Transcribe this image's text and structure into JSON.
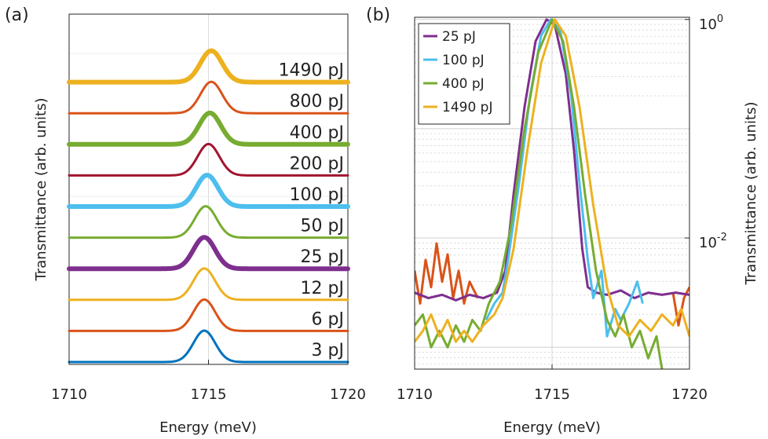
{
  "chart_data": [
    {
      "type": "line",
      "panel_label": "(a)",
      "xlabel": "Energy (meV)",
      "ylabel": "Transmittance (arb. units)",
      "xlim": [
        1710,
        1720
      ],
      "xticks": [
        "1710",
        "1715",
        "1720"
      ],
      "y_scale": "offset waterfall",
      "grid": true,
      "peak_width_meV": 0.55,
      "series": [
        {
          "name": "3 pJ",
          "label": "3 pJ",
          "color": "#0072BD",
          "center": 1714.85,
          "thick": false
        },
        {
          "name": "6 pJ",
          "label": "6 pJ",
          "color": "#D95319",
          "center": 1714.85,
          "thick": false
        },
        {
          "name": "12 pJ",
          "label": "12 pJ",
          "color": "#EDB120",
          "center": 1714.85,
          "thick": false
        },
        {
          "name": "25 pJ",
          "label": "25 pJ",
          "color": "#7E2F8E",
          "center": 1714.85,
          "thick": true
        },
        {
          "name": "50 pJ",
          "label": "50 pJ",
          "color": "#77AC30",
          "center": 1714.9,
          "thick": false
        },
        {
          "name": "100 pJ",
          "label": "100 pJ",
          "color": "#4DBEEE",
          "center": 1714.95,
          "thick": true
        },
        {
          "name": "200 pJ",
          "label": "200 pJ",
          "color": "#A2142F",
          "center": 1715.0,
          "thick": false
        },
        {
          "name": "400 pJ",
          "label": "400 pJ",
          "color": "#77AC30",
          "center": 1715.05,
          "thick": true
        },
        {
          "name": "800 pJ",
          "label": "800 pJ",
          "color": "#D95319",
          "center": 1715.1,
          "thick": false
        },
        {
          "name": "1490 pJ",
          "label": "1490 pJ",
          "color": "#EDB120",
          "center": 1715.1,
          "thick": true
        }
      ]
    },
    {
      "type": "line",
      "panel_label": "(b)",
      "xlabel": "Energy (meV)",
      "ylabel": "Transmittance (arb. units)",
      "xlim": [
        1710,
        1720
      ],
      "xticks": [
        "1710",
        "1715",
        "1720"
      ],
      "y_scale": "log",
      "ylim_log10": [
        -3.2,
        0.02
      ],
      "yticks": [
        {
          "base": "10",
          "exp": "0",
          "log10": 0
        },
        {
          "base": "10",
          "exp": "-2",
          "log10": -2
        }
      ],
      "legend_position": "top-left",
      "grid": true,
      "series": [
        {
          "name": "25 pJ",
          "color": "#7E2F8E",
          "points": [
            [
              1710,
              -2.5
            ],
            [
              1710.5,
              -2.55
            ],
            [
              1711,
              -2.52
            ],
            [
              1711.5,
              -2.57
            ],
            [
              1712,
              -2.52
            ],
            [
              1712.5,
              -2.55
            ],
            [
              1713,
              -2.5
            ],
            [
              1713.3,
              -2.3
            ],
            [
              1713.6,
              -1.6
            ],
            [
              1714,
              -0.8
            ],
            [
              1714.4,
              -0.2
            ],
            [
              1714.8,
              0
            ],
            [
              1715.1,
              -0.05
            ],
            [
              1715.5,
              -0.5
            ],
            [
              1715.8,
              -1.2
            ],
            [
              1716.1,
              -2.1
            ],
            [
              1716.3,
              -2.45
            ],
            [
              1716.6,
              -2.5
            ],
            [
              1717,
              -2.52
            ],
            [
              1717.5,
              -2.48
            ],
            [
              1718,
              -2.55
            ],
            [
              1718.5,
              -2.5
            ],
            [
              1719,
              -2.52
            ],
            [
              1719.5,
              -2.5
            ],
            [
              1720,
              -2.52
            ]
          ]
        },
        {
          "name": "100 pJ",
          "color": "#4DBEEE",
          "points": [
            [
              1712.6,
              -2.75
            ],
            [
              1712.9,
              -2.6
            ],
            [
              1713.2,
              -2.5
            ],
            [
              1713.4,
              -2.2
            ],
            [
              1713.8,
              -1.5
            ],
            [
              1714.2,
              -0.7
            ],
            [
              1714.6,
              -0.15
            ],
            [
              1714.95,
              0
            ],
            [
              1715.3,
              -0.1
            ],
            [
              1715.7,
              -0.7
            ],
            [
              1716.0,
              -1.5
            ],
            [
              1716.3,
              -2.2
            ],
            [
              1716.5,
              -2.55
            ],
            [
              1716.8,
              -2.3
            ],
            [
              1717.0,
              -2.9
            ],
            [
              1717.3,
              -2.65
            ],
            [
              1717.5,
              -2.75
            ],
            [
              1717.8,
              -2.6
            ],
            [
              1718.1,
              -2.4
            ],
            [
              1718.3,
              -2.6
            ]
          ]
        },
        {
          "name": "400 pJ",
          "color": "#77AC30",
          "points": [
            [
              1710,
              -2.8
            ],
            [
              1710.3,
              -2.7
            ],
            [
              1710.6,
              -3.0
            ],
            [
              1710.9,
              -2.85
            ],
            [
              1711.2,
              -3.0
            ],
            [
              1711.5,
              -2.8
            ],
            [
              1711.8,
              -2.95
            ],
            [
              1712.1,
              -2.75
            ],
            [
              1712.4,
              -2.85
            ],
            [
              1712.7,
              -2.6
            ],
            [
              1713.1,
              -2.4
            ],
            [
              1713.5,
              -1.9
            ],
            [
              1714,
              -1.0
            ],
            [
              1714.5,
              -0.3
            ],
            [
              1715.0,
              0
            ],
            [
              1715.4,
              -0.2
            ],
            [
              1715.8,
              -0.8
            ],
            [
              1716.2,
              -1.6
            ],
            [
              1716.6,
              -2.3
            ],
            [
              1717,
              -2.75
            ],
            [
              1717.3,
              -2.9
            ],
            [
              1717.6,
              -2.7
            ],
            [
              1717.9,
              -3.0
            ],
            [
              1718.2,
              -2.85
            ],
            [
              1718.5,
              -3.1
            ],
            [
              1718.8,
              -2.9
            ],
            [
              1719.0,
              -3.2
            ]
          ]
        },
        {
          "name": "1490 pJ",
          "color": "#EDB120",
          "points": [
            [
              1710,
              -2.95
            ],
            [
              1710.3,
              -2.85
            ],
            [
              1710.6,
              -2.7
            ],
            [
              1710.9,
              -2.9
            ],
            [
              1711.2,
              -2.75
            ],
            [
              1711.5,
              -2.95
            ],
            [
              1711.8,
              -2.85
            ],
            [
              1712.1,
              -2.95
            ],
            [
              1712.5,
              -2.8
            ],
            [
              1712.9,
              -2.7
            ],
            [
              1713.2,
              -2.55
            ],
            [
              1713.6,
              -2.1
            ],
            [
              1714.1,
              -1.2
            ],
            [
              1714.6,
              -0.4
            ],
            [
              1715.1,
              0
            ],
            [
              1715.5,
              -0.15
            ],
            [
              1716.0,
              -0.8
            ],
            [
              1716.5,
              -1.7
            ],
            [
              1717.0,
              -2.45
            ],
            [
              1717.4,
              -2.8
            ],
            [
              1717.8,
              -2.9
            ],
            [
              1718.2,
              -2.75
            ],
            [
              1718.6,
              -2.85
            ],
            [
              1719.0,
              -2.7
            ],
            [
              1719.4,
              -2.8
            ],
            [
              1719.7,
              -2.65
            ],
            [
              1720,
              -2.9
            ]
          ]
        },
        {
          "name": "",
          "color": "#D95319",
          "in_legend": false,
          "points": [
            [
              1710,
              -2.3
            ],
            [
              1710.2,
              -2.6
            ],
            [
              1710.4,
              -2.2
            ],
            [
              1710.6,
              -2.45
            ],
            [
              1710.8,
              -2.05
            ],
            [
              1711.0,
              -2.4
            ],
            [
              1711.2,
              -2.15
            ],
            [
              1711.4,
              -2.55
            ],
            [
              1711.6,
              -2.3
            ],
            [
              1711.8,
              -2.6
            ],
            [
              1712.0,
              -2.4
            ],
            [
              1712.3,
              -2.55
            ]
          ]
        },
        {
          "name": "",
          "color": "#D95319",
          "in_legend": false,
          "points": [
            [
              1719.4,
              -2.5
            ],
            [
              1719.6,
              -2.8
            ],
            [
              1719.8,
              -2.55
            ],
            [
              1720,
              -2.45
            ]
          ]
        }
      ]
    }
  ]
}
